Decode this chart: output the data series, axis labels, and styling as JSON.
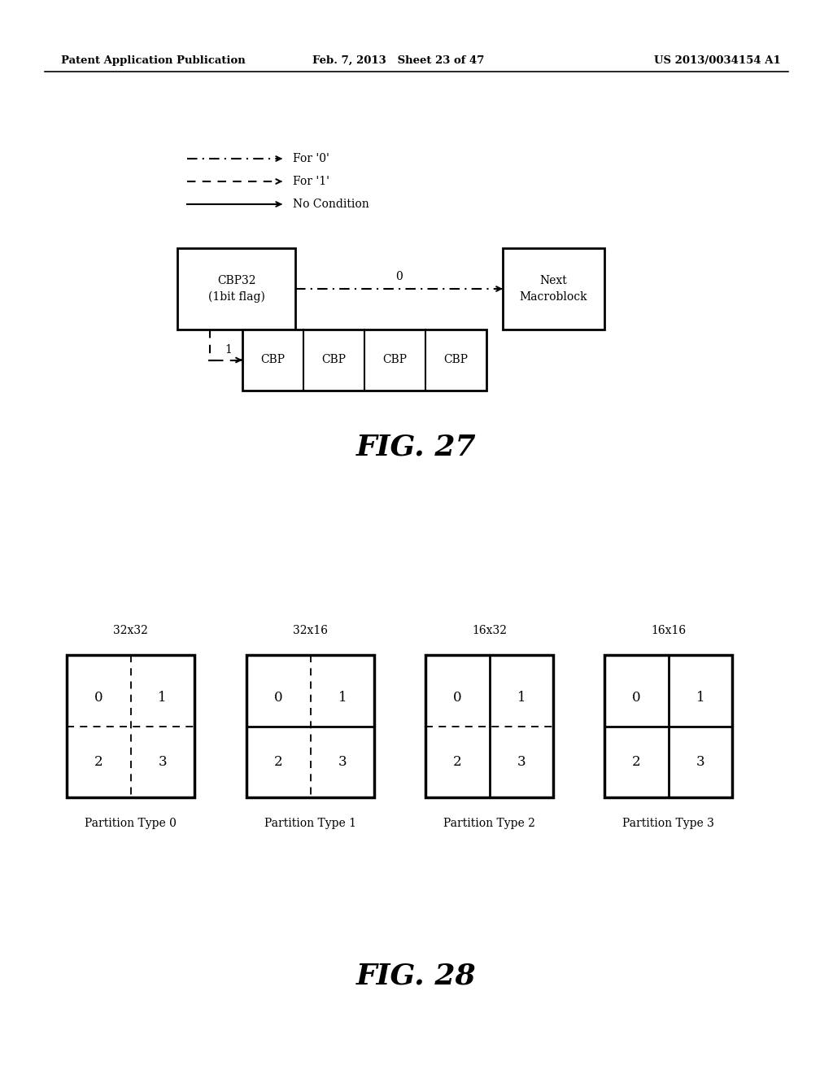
{
  "bg_color": "#ffffff",
  "header_left": "Patent Application Publication",
  "header_mid": "Feb. 7, 2013   Sheet 23 of 47",
  "header_right": "US 2013/0034154 A1",
  "fig27_title": "FIG. 27",
  "fig28_title": "FIG. 28",
  "legend_items": [
    {
      "label": "For '0'"
    },
    {
      "label": "For '1'"
    },
    {
      "label": "No Condition"
    }
  ],
  "partitions": [
    {
      "title": "32x32",
      "label": "Partition Type 0",
      "hline_style": "dashed",
      "vline_style": "dashed"
    },
    {
      "title": "32x16",
      "label": "Partition Type 1",
      "hline_style": "solid",
      "vline_style": "dashed"
    },
    {
      "title": "16x32",
      "label": "Partition Type 2",
      "hline_style": "dashed",
      "vline_style": "solid"
    },
    {
      "title": "16x16",
      "label": "Partition Type 3",
      "hline_style": "solid",
      "vline_style": "solid"
    }
  ]
}
